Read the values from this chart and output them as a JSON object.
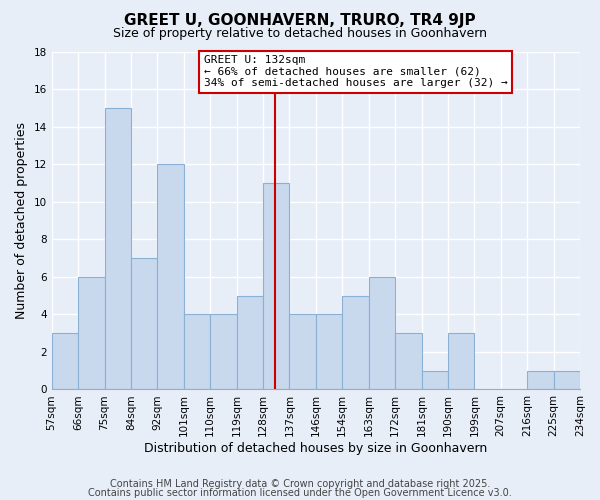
{
  "title": "GREET U, GOONHAVERN, TRURO, TR4 9JP",
  "subtitle": "Size of property relative to detached houses in Goonhavern",
  "xlabel": "Distribution of detached houses by size in Goonhavern",
  "ylabel": "Number of detached properties",
  "bin_labels": [
    "57sqm",
    "66sqm",
    "75sqm",
    "84sqm",
    "92sqm",
    "101sqm",
    "110sqm",
    "119sqm",
    "128sqm",
    "137sqm",
    "146sqm",
    "154sqm",
    "163sqm",
    "172sqm",
    "181sqm",
    "190sqm",
    "199sqm",
    "207sqm",
    "216sqm",
    "225sqm",
    "234sqm"
  ],
  "bar_heights": [
    3,
    6,
    15,
    7,
    12,
    4,
    4,
    5,
    11,
    4,
    4,
    5,
    6,
    3,
    1,
    3,
    0,
    0,
    1,
    1
  ],
  "bar_color": "#c8d9ee",
  "bar_edgecolor": "#8ab0d4",
  "background_color": "#e8eef8",
  "grid_color": "#ffffff",
  "vline_color": "#cc0000",
  "annotation_title": "GREET U: 132sqm",
  "annotation_line1": "← 66% of detached houses are smaller (62)",
  "annotation_line2": "34% of semi-detached houses are larger (32) →",
  "annotation_box_edgecolor": "#cc0000",
  "ylim": [
    0,
    18
  ],
  "yticks": [
    0,
    2,
    4,
    6,
    8,
    10,
    12,
    14,
    16,
    18
  ],
  "footer1": "Contains HM Land Registry data © Crown copyright and database right 2025.",
  "footer2": "Contains public sector information licensed under the Open Government Licence v3.0.",
  "title_fontsize": 11,
  "subtitle_fontsize": 9,
  "tick_fontsize": 7.5,
  "label_fontsize": 9,
  "annotation_fontsize": 8,
  "footer_fontsize": 7
}
